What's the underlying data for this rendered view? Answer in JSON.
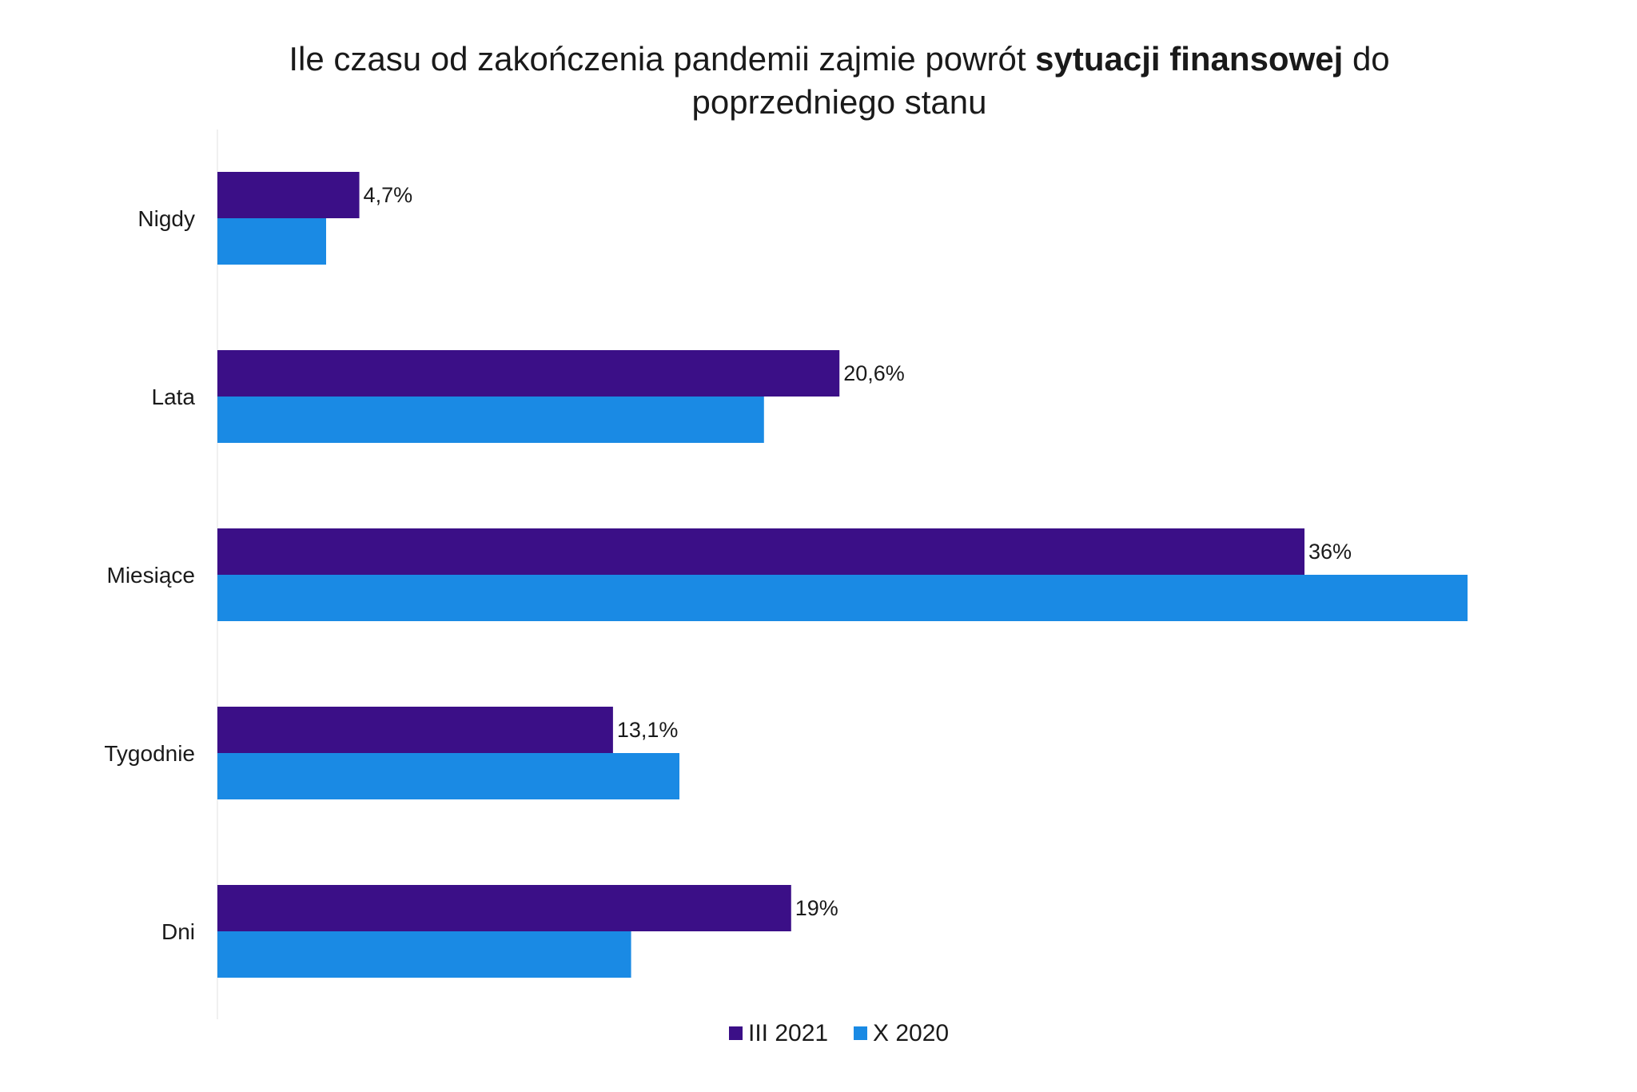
{
  "chart_data": {
    "type": "bar",
    "orientation": "horizontal",
    "title": {
      "line1_prefix": "Ile czasu od zakończenia pandemii zajmie powrót ",
      "line1_bold": "sytuacji finansowej",
      "line1_suffix": " do",
      "line2": "poprzedniego stanu"
    },
    "categories": [
      "Nigdy",
      "Lata",
      "Miesiące",
      "Tygodnie",
      "Dni"
    ],
    "series": [
      {
        "name": "III 2021",
        "color": "#3b0f87",
        "values": [
          4.7,
          20.6,
          36,
          13.1,
          19
        ],
        "labels": [
          "4,7%",
          "20,6%",
          "36%",
          "13,1%",
          "19%"
        ]
      },
      {
        "name": "X 2020",
        "color": "#1a8ae4",
        "values": [
          3.6,
          18.1,
          41.4,
          15.3,
          13.7
        ],
        "labels": [
          "",
          "",
          "",
          "",
          ""
        ]
      }
    ],
    "xlim": [
      0,
      41.4
    ],
    "grid": false,
    "legend_position": "bottom"
  }
}
